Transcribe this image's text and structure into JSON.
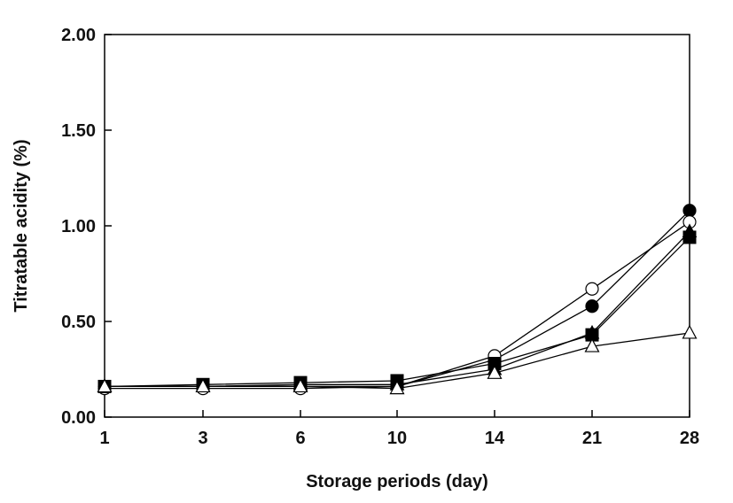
{
  "chart_data": {
    "type": "line",
    "title": "",
    "xlabel": "Storage periods (day)",
    "ylabel": "Titratable acidity (%)",
    "categories": [
      "1",
      "3",
      "6",
      "10",
      "14",
      "21",
      "28"
    ],
    "ylim": [
      0,
      2.0
    ],
    "yticks": [
      "0.00",
      "0.50",
      "1.00",
      "1.50",
      "2.00"
    ],
    "grid": false,
    "legend": "none",
    "series": [
      {
        "marker": "filled-circle",
        "values": [
          0.16,
          0.16,
          0.16,
          0.16,
          0.3,
          0.58,
          1.08
        ]
      },
      {
        "marker": "open-circle",
        "values": [
          0.15,
          0.15,
          0.15,
          0.16,
          0.32,
          0.67,
          1.02
        ]
      },
      {
        "marker": "filled-square",
        "values": [
          0.16,
          0.17,
          0.18,
          0.19,
          0.28,
          0.43,
          0.94
        ]
      },
      {
        "marker": "filled-triangle",
        "values": [
          0.16,
          0.16,
          0.17,
          0.17,
          0.25,
          0.44,
          0.97
        ]
      },
      {
        "marker": "open-triangle",
        "values": [
          0.16,
          0.16,
          0.16,
          0.15,
          0.23,
          0.37,
          0.44
        ]
      }
    ],
    "colors": {
      "line": "#000000",
      "marker_fill": "#000000",
      "open_fill": "#ffffff"
    }
  }
}
